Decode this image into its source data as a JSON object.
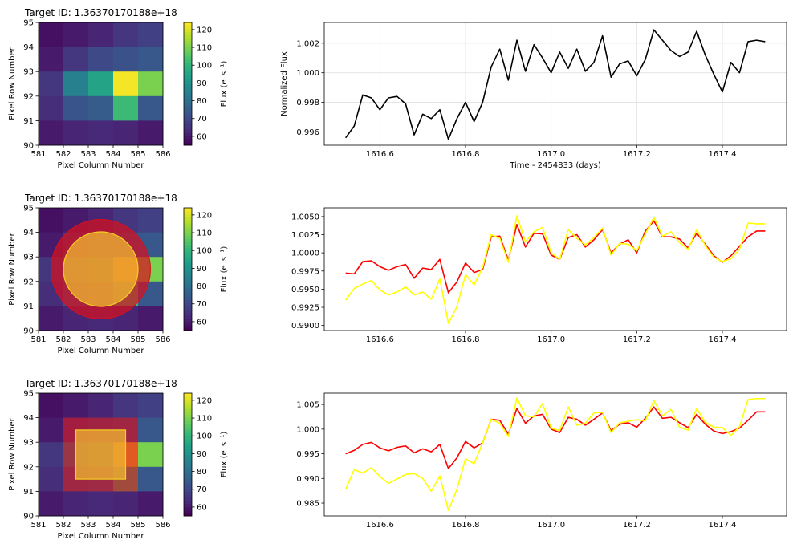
{
  "colors": {
    "line_black": "#000000",
    "line_red": "#ff0000",
    "line_yellow": "#ffff00",
    "aperture_red": "#d7101e",
    "aperture_yellow": "#f0b830",
    "grid": "#e0e0e0"
  },
  "chart_data": [
    {
      "id": "tpf1",
      "type": "heatmap",
      "title": "Target ID: 1.36370170188e+18",
      "xlabel": "Pixel Column Number",
      "ylabel": "Pixel Row Number",
      "xlim": [
        581,
        586
      ],
      "ylim": [
        90,
        95
      ],
      "xticks": [
        "581",
        "582",
        "583",
        "584",
        "585",
        "586"
      ],
      "yticks": [
        "90",
        "91",
        "92",
        "93",
        "94",
        "95"
      ],
      "colorbar_label": "Flux (e⁻s⁻¹)",
      "colorbar_ticks": [
        "60",
        "70",
        "80",
        "90",
        "100",
        "110",
        "120"
      ],
      "colorbar_range": [
        55,
        124
      ],
      "rows_top_to_bottom": [
        [
          58,
          60,
          62,
          66,
          68
        ],
        [
          60,
          66,
          70,
          72,
          74
        ],
        [
          66,
          85,
          95,
          123,
          110
        ],
        [
          64,
          73,
          75,
          102,
          74
        ],
        [
          60,
          62,
          63,
          62,
          60
        ]
      ],
      "aperture": null
    },
    {
      "id": "tpf2",
      "type": "heatmap",
      "title": "Target ID: 1.36370170188e+18",
      "xlabel": "Pixel Column Number",
      "ylabel": "Pixel Row Number",
      "xlim": [
        581,
        586
      ],
      "ylim": [
        90,
        95
      ],
      "xticks": [
        "581",
        "582",
        "583",
        "584",
        "585",
        "586"
      ],
      "yticks": [
        "90",
        "91",
        "92",
        "93",
        "94",
        "95"
      ],
      "colorbar_label": "Flux (e⁻s⁻¹)",
      "colorbar_ticks": [
        "60",
        "70",
        "80",
        "90",
        "100",
        "110",
        "120"
      ],
      "colorbar_range": [
        55,
        124
      ],
      "rows_top_to_bottom": [
        [
          58,
          60,
          62,
          66,
          68
        ],
        [
          60,
          66,
          70,
          72,
          74
        ],
        [
          66,
          85,
          95,
          123,
          110
        ],
        [
          64,
          73,
          75,
          102,
          74
        ],
        [
          60,
          62,
          63,
          62,
          60
        ]
      ],
      "aperture": {
        "shape": "circle",
        "center": [
          583.5,
          92.5
        ],
        "outer_radius": 2.0,
        "inner_radius": 1.5
      }
    },
    {
      "id": "tpf3",
      "type": "heatmap",
      "title": "Target ID: 1.36370170188e+18",
      "xlabel": "Pixel Column Number",
      "ylabel": "Pixel Row Number",
      "xlim": [
        581,
        586
      ],
      "ylim": [
        90,
        95
      ],
      "xticks": [
        "581",
        "582",
        "583",
        "584",
        "585",
        "586"
      ],
      "yticks": [
        "90",
        "91",
        "92",
        "93",
        "94",
        "95"
      ],
      "colorbar_label": "Flux (e⁻s⁻¹)",
      "colorbar_ticks": [
        "60",
        "70",
        "80",
        "90",
        "100",
        "110",
        "120"
      ],
      "colorbar_range": [
        55,
        124
      ],
      "rows_top_to_bottom": [
        [
          58,
          60,
          62,
          66,
          68
        ],
        [
          60,
          66,
          70,
          72,
          74
        ],
        [
          66,
          85,
          95,
          123,
          110
        ],
        [
          64,
          73,
          75,
          102,
          74
        ],
        [
          60,
          62,
          63,
          62,
          60
        ]
      ],
      "aperture": {
        "shape": "square",
        "outer": [
          582,
          585,
          91,
          94
        ],
        "inner": [
          582.5,
          584.5,
          91.5,
          93.5
        ]
      }
    },
    {
      "id": "lc1",
      "type": "line",
      "xlabel": "Time - 2454833 (days)",
      "ylabel": "Normalized Flux",
      "xlim": [
        1616.47,
        1617.55
      ],
      "ylim": [
        0.9951,
        1.0034
      ],
      "xticks": [
        "1616.6",
        "1616.8",
        "1617.0",
        "1617.2",
        "1617.4"
      ],
      "yticks": [
        "0.996",
        "0.998",
        "1.000",
        "1.002"
      ],
      "grid": true,
      "x": [
        1616.52,
        1616.54,
        1616.56,
        1616.58,
        1616.6,
        1616.62,
        1616.64,
        1616.66,
        1616.68,
        1616.7,
        1616.72,
        1616.74,
        1616.76,
        1616.78,
        1616.8,
        1616.82,
        1616.84,
        1616.86,
        1616.88,
        1616.9,
        1616.92,
        1616.94,
        1616.96,
        1616.98,
        1617.0,
        1617.02,
        1617.04,
        1617.06,
        1617.08,
        1617.1,
        1617.12,
        1617.14,
        1617.16,
        1617.18,
        1617.2,
        1617.22,
        1617.24,
        1617.26,
        1617.28,
        1617.3,
        1617.32,
        1617.34,
        1617.36,
        1617.38,
        1617.4,
        1617.42,
        1617.44,
        1617.46,
        1617.48,
        1617.5
      ],
      "series": [
        {
          "color": "#000000",
          "values": [
            0.9956,
            0.9964,
            0.9985,
            0.9983,
            0.9975,
            0.9983,
            0.9984,
            0.9979,
            0.9958,
            0.9972,
            0.9969,
            0.9975,
            0.9955,
            0.9969,
            0.998,
            0.9967,
            0.998,
            1.0004,
            1.0016,
            0.9995,
            1.0022,
            1.0001,
            1.0019,
            1.001,
            1.0,
            1.0014,
            1.0003,
            1.0016,
            1.0001,
            1.0007,
            1.0025,
            0.9997,
            1.0006,
            1.0008,
            0.9998,
            1.0009,
            1.0029,
            1.0022,
            1.0015,
            1.0011,
            1.0014,
            1.0028,
            1.0012,
            0.9999,
            0.9987,
            1.0007,
            1.0,
            1.0021,
            1.0022,
            1.0021
          ]
        }
      ]
    },
    {
      "id": "lc2",
      "type": "line",
      "xlim": [
        1616.47,
        1617.55
      ],
      "ylim": [
        0.9893,
        1.0062
      ],
      "xticks": [
        "1616.6",
        "1616.8",
        "1617.0",
        "1617.2",
        "1617.4"
      ],
      "yticks": [
        "0.9900",
        "0.9925",
        "0.9950",
        "0.9975",
        "1.0000",
        "1.0025",
        "1.0050"
      ],
      "grid": false,
      "x": [
        1616.52,
        1616.54,
        1616.56,
        1616.58,
        1616.6,
        1616.62,
        1616.64,
        1616.66,
        1616.68,
        1616.7,
        1616.72,
        1616.74,
        1616.76,
        1616.78,
        1616.8,
        1616.82,
        1616.84,
        1616.86,
        1616.88,
        1616.9,
        1616.92,
        1616.94,
        1616.96,
        1616.98,
        1617.0,
        1617.02,
        1617.04,
        1617.06,
        1617.08,
        1617.1,
        1617.12,
        1617.14,
        1617.16,
        1617.18,
        1617.2,
        1617.22,
        1617.24,
        1617.26,
        1617.28,
        1617.3,
        1617.32,
        1617.34,
        1617.36,
        1617.38,
        1617.4,
        1617.42,
        1617.44,
        1617.46,
        1617.48,
        1617.5
      ],
      "series": [
        {
          "color": "#ff0000",
          "values": [
            0.9972,
            0.9971,
            0.9988,
            0.9989,
            0.9981,
            0.9976,
            0.9981,
            0.9984,
            0.9965,
            0.9979,
            0.9977,
            0.9991,
            0.9945,
            0.996,
            0.9986,
            0.9973,
            0.9977,
            1.0022,
            1.0023,
            0.999,
            1.0039,
            1.0008,
            1.0027,
            1.0026,
            0.9997,
            0.9991,
            1.0021,
            1.0025,
            1.0008,
            1.0018,
            1.0032,
            1.0,
            1.0012,
            1.0018,
            1.0,
            1.003,
            1.0044,
            1.0022,
            1.0022,
            1.0019,
            1.0007,
            1.0027,
            1.0012,
            0.9996,
            0.9987,
            0.9996,
            1.0009,
            1.0022,
            1.003,
            1.003
          ]
        },
        {
          "color": "#ffff00",
          "values": [
            0.9935,
            0.9951,
            0.9957,
            0.9962,
            0.9949,
            0.9942,
            0.9946,
            0.9953,
            0.9942,
            0.9946,
            0.9936,
            0.9964,
            0.9903,
            0.9926,
            0.997,
            0.9956,
            0.998,
            1.0025,
            1.002,
            0.9987,
            1.0051,
            1.0015,
            1.0029,
            1.0035,
            1.0,
            0.9991,
            1.0032,
            1.002,
            1.0011,
            1.0021,
            1.0034,
            0.9997,
            1.0013,
            1.0012,
            1.0003,
            1.0026,
            1.0049,
            1.0023,
            1.0029,
            1.0014,
            1.0005,
            1.0032,
            1.001,
            0.9994,
            0.9988,
            0.9992,
            1.0005,
            1.0041,
            1.004,
            1.004
          ]
        }
      ]
    },
    {
      "id": "lc3",
      "type": "line",
      "xlim": [
        1616.47,
        1617.55
      ],
      "ylim": [
        0.9824,
        1.0073
      ],
      "xticks": [
        "1616.6",
        "1616.8",
        "1617.0",
        "1617.2",
        "1617.4"
      ],
      "yticks": [
        "0.985",
        "0.990",
        "0.995",
        "1.000",
        "1.005"
      ],
      "grid": false,
      "x": [
        1616.52,
        1616.54,
        1616.56,
        1616.58,
        1616.6,
        1616.62,
        1616.64,
        1616.66,
        1616.68,
        1616.7,
        1616.72,
        1616.74,
        1616.76,
        1616.78,
        1616.8,
        1616.82,
        1616.84,
        1616.86,
        1616.88,
        1616.9,
        1616.92,
        1616.94,
        1616.96,
        1616.98,
        1617.0,
        1617.02,
        1617.04,
        1617.06,
        1617.08,
        1617.1,
        1617.12,
        1617.14,
        1617.16,
        1617.18,
        1617.2,
        1617.22,
        1617.24,
        1617.26,
        1617.28,
        1617.3,
        1617.32,
        1617.34,
        1617.36,
        1617.38,
        1617.4,
        1617.42,
        1617.44,
        1617.46,
        1617.48,
        1617.5
      ],
      "series": [
        {
          "color": "#ff0000",
          "values": [
            0.995,
            0.9957,
            0.9969,
            0.9973,
            0.9962,
            0.9956,
            0.9963,
            0.9966,
            0.9952,
            0.996,
            0.9954,
            0.9969,
            0.992,
            0.9942,
            0.9975,
            0.9962,
            0.9972,
            1.002,
            1.0018,
            0.999,
            1.0042,
            1.0012,
            1.0027,
            1.003,
            1.0,
            0.9993,
            1.0024,
            1.002,
            1.0008,
            1.002,
            1.0033,
            0.9997,
            1.001,
            1.0013,
            1.0004,
            1.0022,
            1.0045,
            1.0022,
            1.0024,
            1.0013,
            1.0003,
            1.003,
            1.001,
            0.9996,
            0.9991,
            0.9995,
            1.0002,
            1.0018,
            1.0035,
            1.0035
          ]
        },
        {
          "color": "#ffff00",
          "values": [
            0.9878,
            0.9918,
            0.9911,
            0.9922,
            0.9904,
            0.989,
            0.9899,
            0.9908,
            0.991,
            0.99,
            0.9874,
            0.9905,
            0.9835,
            0.9878,
            0.994,
            0.993,
            0.9972,
            1.002,
            1.0012,
            0.9985,
            1.0063,
            1.0027,
            1.0025,
            1.0052,
            1.0002,
            0.9997,
            1.0045,
            1.0008,
            1.0012,
            1.0033,
            1.0034,
            0.9993,
            1.0013,
            1.0016,
            1.0019,
            1.0017,
            1.0058,
            1.0027,
            1.004,
            1.0004,
            0.9998,
            1.0042,
            1.0014,
            1.0004,
            1.0003,
            0.9987,
            1.0005,
            1.006,
            1.0062,
            1.0062
          ]
        }
      ]
    }
  ]
}
